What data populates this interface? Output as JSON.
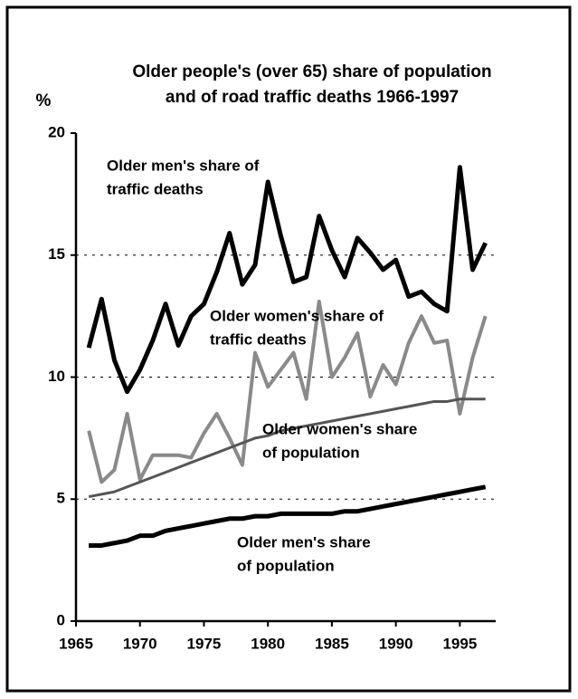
{
  "chart_data": {
    "type": "line",
    "title": [
      "Older people's (over 65) share of population",
      "and of road traffic deaths 1966-1997"
    ],
    "y_label": "%",
    "x": [
      1966,
      1967,
      1968,
      1969,
      1970,
      1971,
      1972,
      1973,
      1974,
      1975,
      1976,
      1977,
      1978,
      1979,
      1980,
      1981,
      1982,
      1983,
      1984,
      1985,
      1986,
      1987,
      1988,
      1989,
      1990,
      1991,
      1992,
      1993,
      1994,
      1995,
      1996,
      1997
    ],
    "series": [
      {
        "name": "Older men's share of traffic deaths",
        "color": "#000000",
        "values": [
          11.2,
          13.2,
          10.7,
          9.4,
          10.3,
          11.5,
          13.0,
          11.3,
          12.5,
          13.0,
          14.3,
          15.9,
          13.8,
          14.6,
          18.0,
          15.8,
          13.9,
          14.1,
          16.6,
          15.2,
          14.1,
          15.7,
          15.1,
          14.4,
          14.8,
          13.3,
          13.5,
          13.0,
          12.7,
          18.6,
          14.4,
          15.5
        ]
      },
      {
        "name": "Older women's share of traffic deaths",
        "color": "#8a8a8a",
        "values": [
          7.8,
          5.7,
          6.2,
          8.5,
          5.8,
          6.8,
          6.8,
          6.8,
          6.7,
          7.7,
          8.5,
          7.5,
          6.4,
          11.0,
          9.6,
          10.3,
          11.0,
          9.1,
          13.1,
          10.0,
          10.8,
          11.8,
          9.2,
          10.5,
          9.7,
          11.4,
          12.5,
          11.4,
          11.5,
          8.5,
          10.8,
          12.5
        ]
      },
      {
        "name": "Older women's share of population",
        "color": "#555555",
        "values": [
          5.1,
          5.2,
          5.3,
          5.5,
          5.7,
          5.9,
          6.1,
          6.3,
          6.5,
          6.7,
          6.9,
          7.1,
          7.3,
          7.5,
          7.6,
          7.8,
          7.9,
          8.0,
          8.1,
          8.2,
          8.3,
          8.4,
          8.5,
          8.6,
          8.7,
          8.8,
          8.9,
          9.0,
          9.0,
          9.1,
          9.1,
          9.1
        ]
      },
      {
        "name": "Older men's share of population",
        "color": "#000000",
        "values": [
          3.1,
          3.1,
          3.2,
          3.3,
          3.5,
          3.5,
          3.7,
          3.8,
          3.9,
          4.0,
          4.1,
          4.2,
          4.2,
          4.3,
          4.3,
          4.4,
          4.4,
          4.4,
          4.4,
          4.4,
          4.5,
          4.5,
          4.6,
          4.7,
          4.8,
          4.9,
          5.0,
          5.1,
          5.2,
          5.3,
          5.4,
          5.5
        ]
      }
    ],
    "annotations": [
      [
        "Older men's share of",
        "traffic deaths"
      ],
      [
        "Older women's share of",
        "traffic deaths"
      ],
      [
        "Older women's share",
        "of population"
      ],
      [
        "Older men's share",
        "of population"
      ]
    ],
    "xlim": [
      1965,
      1997.8
    ],
    "xticks": [
      1965,
      1970,
      1975,
      1980,
      1985,
      1990,
      1995
    ],
    "ylim": [
      0,
      20
    ],
    "yticks": [
      0,
      5,
      10,
      15,
      20
    ],
    "grid": true
  }
}
